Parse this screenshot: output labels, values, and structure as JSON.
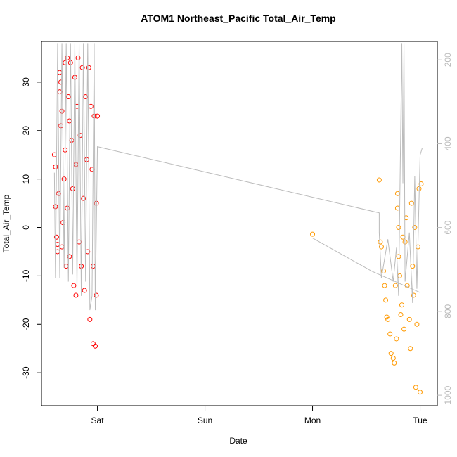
{
  "chart_data": {
    "type": "scatter",
    "title": "ATOM1 Northeast_Pacific Total_Air_Temp",
    "x_label": "Date",
    "y_label": "Total_Air_Temp",
    "xlim": [
      -0.52,
      3.16
    ],
    "xticks": [
      {
        "value": 0,
        "label": "Sat"
      },
      {
        "value": 1,
        "label": "Sun"
      },
      {
        "value": 2,
        "label": "Mon"
      },
      {
        "value": 3,
        "label": "Tue"
      }
    ],
    "ylim": [
      -36.8,
      38.4
    ],
    "yticks": [
      -30,
      -20,
      -10,
      0,
      10,
      20,
      30
    ],
    "y2lim": [
      1025,
      156
    ],
    "y2ticks": [
      200,
      400,
      600,
      800,
      1000
    ],
    "series": [
      {
        "color": "#ff0000",
        "x": [
          -0.4,
          -0.39,
          -0.39,
          -0.38,
          -0.37,
          -0.37,
          -0.36,
          -0.35,
          -0.35,
          -0.34,
          -0.34,
          -0.33,
          -0.33,
          -0.32,
          -0.31,
          -0.3,
          -0.3,
          -0.29,
          -0.28,
          -0.28,
          -0.27,
          -0.26,
          -0.26,
          -0.25,
          -0.24,
          -0.23,
          -0.22,
          -0.21,
          -0.2,
          -0.2,
          -0.19,
          -0.18,
          -0.17,
          -0.16,
          -0.15,
          -0.14,
          -0.13,
          -0.12,
          -0.11,
          -0.1,
          -0.09,
          -0.08,
          -0.07,
          -0.06,
          -0.05,
          -0.04,
          -0.04,
          -0.03,
          -0.02,
          -0.01,
          -0.01,
          0.0
        ],
        "values": [
          15,
          12.5,
          4.3,
          -2,
          -5,
          -3.5,
          7,
          32,
          28,
          30,
          21,
          24,
          -4,
          1,
          10,
          34,
          16,
          -8,
          35,
          4,
          27,
          22,
          -6,
          34,
          18,
          8,
          -12,
          31,
          -14,
          13,
          25,
          35,
          -3,
          19,
          -8,
          33,
          6,
          -13,
          27,
          14,
          -5,
          33,
          -19,
          25,
          12,
          -8,
          -24,
          23,
          -24.5,
          5,
          -14,
          23
        ]
      },
      {
        "color": "#ff9900",
        "x": [
          2.0,
          2.62,
          2.63,
          2.64,
          2.66,
          2.67,
          2.68,
          2.69,
          2.7,
          2.72,
          2.73,
          2.75,
          2.76,
          2.77,
          2.78,
          2.79,
          2.79,
          2.8,
          2.8,
          2.81,
          2.82,
          2.83,
          2.84,
          2.85,
          2.86,
          2.87,
          2.88,
          2.9,
          2.91,
          2.92,
          2.93,
          2.94,
          2.95,
          2.96,
          2.97,
          2.98,
          2.99,
          3.0,
          3.01
        ],
        "values": [
          -1.4,
          9.8,
          -3,
          -4,
          -9,
          -12,
          -15,
          -18.5,
          -19,
          -22,
          -26,
          -27,
          -28,
          -12,
          -23,
          7,
          4,
          0,
          -6,
          -10,
          -18,
          -16,
          -2,
          -21,
          -3,
          2,
          -12,
          -19,
          -25,
          5,
          -8,
          -14,
          0,
          -33,
          -20,
          -4,
          8,
          -34,
          9
        ]
      },
      {
        "type": "line",
        "axis": "y2",
        "color": "#bbbbbb",
        "x": [
          -0.4,
          -0.39,
          -0.37,
          -0.35,
          -0.33,
          -0.31,
          -0.29,
          -0.27,
          -0.25,
          -0.23,
          -0.21,
          -0.19,
          -0.17,
          -0.15,
          -0.13,
          -0.11,
          -0.09,
          -0.07,
          -0.05,
          -0.03,
          -0.02,
          0.0,
          2.62,
          2.62,
          2.64,
          2.7,
          2.75,
          2.78,
          2.8,
          2.83,
          2.84,
          2.85,
          2.86,
          2.9,
          2.93,
          2.95,
          2.97,
          3.0,
          3.02,
          null,
          2.0,
          2.55,
          3.0
        ],
        "values": [
          469,
          721,
          160,
          721,
          160,
          696,
          160,
          729,
          160,
          712,
          160,
          746,
          160,
          763,
          160,
          729,
          160,
          797,
          763,
          160,
          797,
          407,
          565,
          612,
          721,
          628,
          729,
          648,
          763,
          160,
          494,
          160,
          729,
          612,
          780,
          477,
          746,
          427,
          410,
          null,
          625,
          704,
          755
        ]
      }
    ]
  }
}
